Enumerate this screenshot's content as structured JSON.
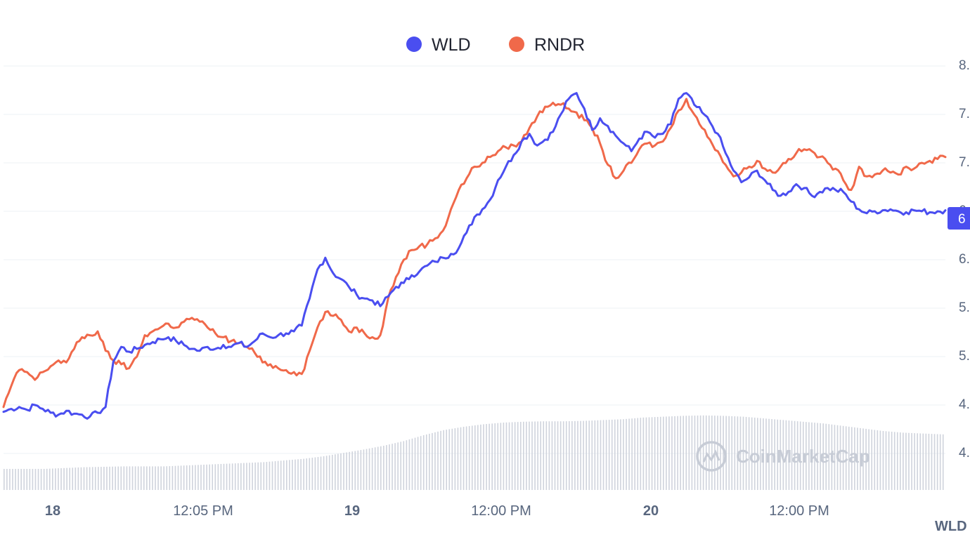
{
  "chart_data": {
    "type": "line",
    "legend": {
      "placement": "top-center"
    },
    "y_axis": {
      "tick_labels": [
        "8.",
        "7.",
        "7.",
        "6",
        "6.",
        "5.",
        "5.",
        "4.",
        "4."
      ],
      "position": "right"
    },
    "x_axis": {
      "ticks": [
        {
          "label": "18",
          "bold": true
        },
        {
          "label": "12:05 PM",
          "bold": false
        },
        {
          "label": "19",
          "bold": true
        },
        {
          "label": "12:00 PM",
          "bold": false
        },
        {
          "label": "20",
          "bold": true
        },
        {
          "label": "12:00 PM",
          "bold": false
        }
      ],
      "unit_label": "WLD"
    },
    "current_price_tag": "6",
    "watermark": "CoinMarketCap",
    "grid": true,
    "series": [
      {
        "name": "WLD",
        "color": "#4a4ef0",
        "points": [
          [
            0,
            4.43
          ],
          [
            0.8,
            4.46
          ],
          [
            1.6,
            4.48
          ],
          [
            2.4,
            4.45
          ],
          [
            3.2,
            4.5
          ],
          [
            4.0,
            4.46
          ],
          [
            4.8,
            4.42
          ],
          [
            5.6,
            4.4
          ],
          [
            6.4,
            4.44
          ],
          [
            7.2,
            4.41
          ],
          [
            8.0,
            4.4
          ],
          [
            8.8,
            4.38
          ],
          [
            9.6,
            4.42
          ],
          [
            10.4,
            4.48
          ],
          [
            11.2,
            4.95
          ],
          [
            12.0,
            5.1
          ],
          [
            12.8,
            5.05
          ],
          [
            13.6,
            5.08
          ],
          [
            14.4,
            5.12
          ],
          [
            15.2,
            5.15
          ],
          [
            16.0,
            5.18
          ],
          [
            16.8,
            5.2
          ],
          [
            17.6,
            5.16
          ],
          [
            18.4,
            5.12
          ],
          [
            19.2,
            5.08
          ],
          [
            20.0,
            5.06
          ],
          [
            20.8,
            5.1
          ],
          [
            21.6,
            5.08
          ],
          [
            22.4,
            5.12
          ],
          [
            23.2,
            5.1
          ],
          [
            24.0,
            5.14
          ],
          [
            24.8,
            5.1
          ],
          [
            25.6,
            5.16
          ],
          [
            26.4,
            5.24
          ],
          [
            27.2,
            5.2
          ],
          [
            28.0,
            5.22
          ],
          [
            28.8,
            5.24
          ],
          [
            29.6,
            5.26
          ],
          [
            30.4,
            5.32
          ],
          [
            31.2,
            5.6
          ],
          [
            32.0,
            5.9
          ],
          [
            32.8,
            6.02
          ],
          [
            33.6,
            5.86
          ],
          [
            34.4,
            5.8
          ],
          [
            35.2,
            5.72
          ],
          [
            36.0,
            5.64
          ],
          [
            36.8,
            5.6
          ],
          [
            37.6,
            5.58
          ],
          [
            38.4,
            5.52
          ],
          [
            39.2,
            5.62
          ],
          [
            40.0,
            5.72
          ],
          [
            40.8,
            5.76
          ],
          [
            41.6,
            5.84
          ],
          [
            42.4,
            5.88
          ],
          [
            43.2,
            5.94
          ],
          [
            44.0,
            5.98
          ],
          [
            44.8,
            6.02
          ],
          [
            45.6,
            6.06
          ],
          [
            46.4,
            6.12
          ],
          [
            47.2,
            6.28
          ],
          [
            48.0,
            6.44
          ],
          [
            48.8,
            6.52
          ],
          [
            49.6,
            6.62
          ],
          [
            50.4,
            6.82
          ],
          [
            51.2,
            6.96
          ],
          [
            52.0,
            7.08
          ],
          [
            52.8,
            7.22
          ],
          [
            53.6,
            7.3
          ],
          [
            54.4,
            7.18
          ],
          [
            55.2,
            7.24
          ],
          [
            56.0,
            7.32
          ],
          [
            56.8,
            7.5
          ],
          [
            57.6,
            7.66
          ],
          [
            58.4,
            7.72
          ],
          [
            59.2,
            7.56
          ],
          [
            60.0,
            7.34
          ],
          [
            60.8,
            7.46
          ],
          [
            61.6,
            7.38
          ],
          [
            62.4,
            7.28
          ],
          [
            63.2,
            7.2
          ],
          [
            64.0,
            7.12
          ],
          [
            64.8,
            7.25
          ],
          [
            65.6,
            7.32
          ],
          [
            66.4,
            7.26
          ],
          [
            67.2,
            7.3
          ],
          [
            68.0,
            7.4
          ],
          [
            68.8,
            7.66
          ],
          [
            69.6,
            7.72
          ],
          [
            70.4,
            7.6
          ],
          [
            71.2,
            7.52
          ],
          [
            72.0,
            7.42
          ],
          [
            72.8,
            7.3
          ],
          [
            73.6,
            7.1
          ],
          [
            74.4,
            6.92
          ],
          [
            75.2,
            6.8
          ],
          [
            76.0,
            6.85
          ],
          [
            76.8,
            6.92
          ],
          [
            77.6,
            6.82
          ],
          [
            78.4,
            6.72
          ],
          [
            79.2,
            6.66
          ],
          [
            80.0,
            6.7
          ],
          [
            80.8,
            6.78
          ],
          [
            81.6,
            6.74
          ],
          [
            82.4,
            6.66
          ],
          [
            83.2,
            6.7
          ],
          [
            84.0,
            6.74
          ],
          [
            84.8,
            6.72
          ],
          [
            85.6,
            6.7
          ],
          [
            86.4,
            6.6
          ],
          [
            87.2,
            6.52
          ],
          [
            88.0,
            6.48
          ],
          [
            88.8,
            6.5
          ],
          [
            89.6,
            6.51
          ],
          [
            90.4,
            6.52
          ],
          [
            91.2,
            6.5
          ],
          [
            92.0,
            6.49
          ],
          [
            92.8,
            6.51
          ],
          [
            93.6,
            6.5
          ],
          [
            94.4,
            6.49
          ],
          [
            95.2,
            6.5
          ],
          [
            96.0,
            6.51
          ]
        ]
      },
      {
        "name": "RNDR",
        "color": "#f0694a",
        "points": [
          [
            0,
            4.48
          ],
          [
            0.8,
            4.7
          ],
          [
            1.6,
            4.86
          ],
          [
            2.4,
            4.84
          ],
          [
            3.2,
            4.76
          ],
          [
            4.0,
            4.84
          ],
          [
            4.8,
            4.9
          ],
          [
            5.6,
            4.96
          ],
          [
            6.4,
            4.94
          ],
          [
            7.2,
            5.08
          ],
          [
            8.0,
            5.2
          ],
          [
            8.8,
            5.22
          ],
          [
            9.6,
            5.26
          ],
          [
            10.4,
            5.06
          ],
          [
            11.2,
            4.96
          ],
          [
            12.0,
            4.92
          ],
          [
            12.8,
            4.88
          ],
          [
            13.6,
            5.0
          ],
          [
            14.4,
            5.22
          ],
          [
            15.2,
            5.26
          ],
          [
            16.0,
            5.3
          ],
          [
            16.8,
            5.34
          ],
          [
            17.6,
            5.3
          ],
          [
            18.4,
            5.36
          ],
          [
            19.2,
            5.4
          ],
          [
            20.0,
            5.36
          ],
          [
            20.8,
            5.3
          ],
          [
            21.6,
            5.24
          ],
          [
            22.4,
            5.2
          ],
          [
            23.2,
            5.16
          ],
          [
            24.0,
            5.14
          ],
          [
            24.8,
            5.1
          ],
          [
            25.6,
            5.04
          ],
          [
            26.4,
            4.94
          ],
          [
            27.2,
            4.92
          ],
          [
            28.0,
            4.88
          ],
          [
            28.8,
            4.86
          ],
          [
            29.6,
            4.84
          ],
          [
            30.4,
            4.82
          ],
          [
            31.2,
            5.06
          ],
          [
            32.0,
            5.3
          ],
          [
            32.8,
            5.46
          ],
          [
            33.6,
            5.42
          ],
          [
            34.4,
            5.38
          ],
          [
            35.2,
            5.26
          ],
          [
            36.0,
            5.3
          ],
          [
            36.8,
            5.24
          ],
          [
            37.6,
            5.2
          ],
          [
            38.4,
            5.22
          ],
          [
            39.2,
            5.6
          ],
          [
            40.0,
            5.82
          ],
          [
            40.8,
            6.0
          ],
          [
            41.6,
            6.1
          ],
          [
            42.4,
            6.14
          ],
          [
            43.2,
            6.16
          ],
          [
            44.0,
            6.22
          ],
          [
            44.8,
            6.3
          ],
          [
            45.6,
            6.52
          ],
          [
            46.4,
            6.72
          ],
          [
            47.2,
            6.84
          ],
          [
            48.0,
            6.96
          ],
          [
            48.8,
            7.0
          ],
          [
            49.6,
            7.06
          ],
          [
            50.4,
            7.12
          ],
          [
            51.2,
            7.16
          ],
          [
            52.0,
            7.18
          ],
          [
            52.8,
            7.22
          ],
          [
            53.6,
            7.36
          ],
          [
            54.4,
            7.48
          ],
          [
            55.2,
            7.58
          ],
          [
            56.0,
            7.62
          ],
          [
            56.8,
            7.6
          ],
          [
            57.6,
            7.56
          ],
          [
            58.4,
            7.52
          ],
          [
            59.2,
            7.44
          ],
          [
            60.0,
            7.36
          ],
          [
            60.8,
            7.2
          ],
          [
            61.6,
            6.98
          ],
          [
            62.4,
            6.84
          ],
          [
            63.2,
            6.92
          ],
          [
            64.0,
            7.0
          ],
          [
            64.8,
            7.14
          ],
          [
            65.6,
            7.2
          ],
          [
            66.4,
            7.18
          ],
          [
            67.2,
            7.22
          ],
          [
            68.0,
            7.36
          ],
          [
            68.8,
            7.54
          ],
          [
            69.6,
            7.66
          ],
          [
            70.4,
            7.5
          ],
          [
            71.2,
            7.36
          ],
          [
            72.0,
            7.24
          ],
          [
            72.8,
            7.12
          ],
          [
            73.6,
            6.98
          ],
          [
            74.4,
            6.86
          ],
          [
            75.2,
            6.9
          ],
          [
            76.0,
            6.96
          ],
          [
            76.8,
            7.02
          ],
          [
            77.6,
            6.94
          ],
          [
            78.4,
            6.9
          ],
          [
            79.2,
            6.96
          ],
          [
            80.0,
            7.04
          ],
          [
            80.8,
            7.1
          ],
          [
            81.6,
            7.14
          ],
          [
            82.4,
            7.12
          ],
          [
            83.2,
            7.06
          ],
          [
            84.0,
            7.0
          ],
          [
            84.8,
            6.94
          ],
          [
            85.6,
            6.82
          ],
          [
            86.4,
            6.72
          ],
          [
            87.2,
            6.96
          ],
          [
            88.0,
            6.86
          ],
          [
            88.8,
            6.88
          ],
          [
            89.6,
            6.92
          ],
          [
            90.4,
            6.9
          ],
          [
            91.2,
            6.88
          ],
          [
            92.0,
            6.96
          ],
          [
            92.8,
            6.94
          ],
          [
            93.6,
            7.0
          ],
          [
            94.4,
            7.02
          ],
          [
            95.2,
            7.04
          ],
          [
            96.0,
            7.06
          ]
        ]
      }
    ],
    "volume": {
      "values": [
        0.5,
        0.5,
        0.5,
        0.52,
        0.54,
        0.55,
        0.56,
        0.56,
        0.56,
        0.58,
        0.6,
        0.62,
        0.64,
        0.66,
        0.7,
        0.74,
        0.8,
        0.88,
        0.96,
        1.05,
        1.16,
        1.3,
        1.42,
        1.5,
        1.56,
        1.6,
        1.62,
        1.63,
        1.63,
        1.64,
        1.66,
        1.68,
        1.72,
        1.74,
        1.76,
        1.77,
        1.76,
        1.74,
        1.7,
        1.66,
        1.62,
        1.58,
        1.52,
        1.46,
        1.4,
        1.36,
        1.34,
        1.32
      ]
    }
  }
}
